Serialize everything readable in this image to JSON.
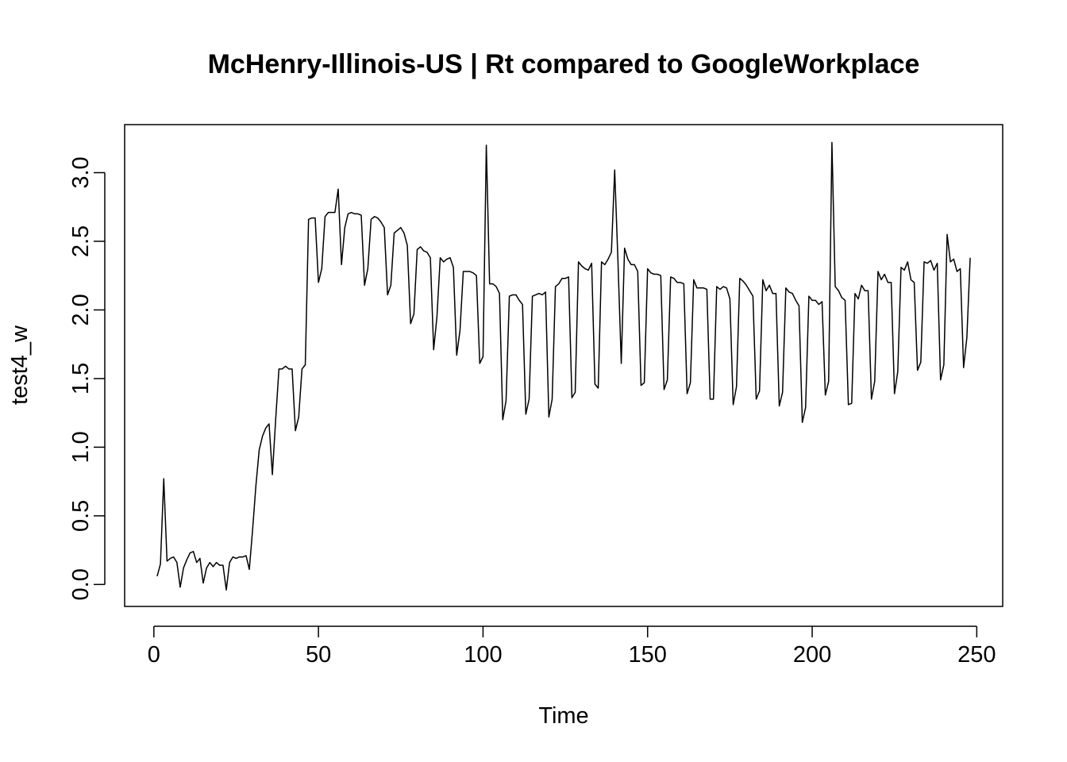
{
  "chart_data": {
    "type": "line",
    "title": "McHenry-Illinois-US | Rt compared to GoogleWorkplace",
    "xlabel": "Time",
    "ylabel": "test4_w",
    "xlim": [
      1,
      248
    ],
    "ylim": [
      -0.03,
      3.22
    ],
    "grid": false,
    "x_ticks": [
      0,
      50,
      100,
      150,
      200,
      250
    ],
    "x_tick_labels": [
      "0",
      "50",
      "100",
      "150",
      "200",
      "250"
    ],
    "y_ticks": [
      0.0,
      0.5,
      1.0,
      1.5,
      2.0,
      2.5,
      3.0
    ],
    "y_tick_labels": [
      "0.0",
      "0.5",
      "1.0",
      "1.5",
      "2.0",
      "2.5",
      "3.0"
    ],
    "line_color": "#000000",
    "series": [
      {
        "x": [
          1,
          2,
          3,
          4,
          5,
          6,
          7,
          8,
          9,
          10,
          11,
          12,
          13,
          14,
          15,
          16,
          17,
          18,
          19,
          20,
          21,
          22,
          23,
          24,
          25,
          26,
          27,
          28,
          29,
          30,
          31,
          32,
          33,
          34,
          35,
          36,
          37,
          38,
          39,
          40,
          41,
          42,
          43,
          44,
          45,
          46,
          47,
          48,
          49,
          50,
          51,
          52,
          53,
          54,
          55,
          56,
          57,
          58,
          59,
          60,
          61,
          62,
          63,
          64,
          65,
          66,
          67,
          68,
          69,
          70,
          71,
          72,
          73,
          74,
          75,
          76,
          77,
          78,
          79,
          80,
          81,
          82,
          83,
          84,
          85,
          86,
          87,
          88,
          89,
          90,
          91,
          92,
          93,
          94,
          95,
          96,
          97,
          98,
          99,
          100,
          101,
          102,
          103,
          104,
          105,
          106,
          107,
          108,
          109,
          110,
          111,
          112,
          113,
          114,
          115,
          116,
          117,
          118,
          119,
          120,
          121,
          122,
          123,
          124,
          125,
          126,
          127,
          128,
          129,
          130,
          131,
          132,
          133,
          134,
          135,
          136,
          137,
          138,
          139,
          140,
          141,
          142,
          143,
          144,
          145,
          146,
          147,
          148,
          149,
          150,
          151,
          152,
          153,
          154,
          155,
          156,
          157,
          158,
          159,
          160,
          161,
          162,
          163,
          164,
          165,
          166,
          167,
          168,
          169,
          170,
          171,
          172,
          173,
          174,
          175,
          176,
          177,
          178,
          179,
          180,
          181,
          182,
          183,
          184,
          185,
          186,
          187,
          188,
          189,
          190,
          191,
          192,
          193,
          194,
          195,
          196,
          197,
          198,
          199,
          200,
          201,
          202,
          203,
          204,
          205,
          206,
          207,
          208,
          209,
          210,
          211,
          212,
          213,
          214,
          215,
          216,
          217,
          218,
          219,
          220,
          221,
          222,
          223,
          224,
          225,
          226,
          227,
          228,
          229,
          230,
          231,
          232,
          233,
          234,
          235,
          236,
          237,
          238,
          239,
          240,
          241,
          242,
          243,
          244,
          245,
          246,
          247,
          248
        ],
        "values": [
          0.06,
          0.15,
          0.77,
          0.17,
          0.19,
          0.2,
          0.16,
          -0.02,
          0.12,
          0.18,
          0.23,
          0.24,
          0.16,
          0.19,
          0.01,
          0.12,
          0.16,
          0.13,
          0.16,
          0.14,
          0.14,
          -0.04,
          0.16,
          0.2,
          0.19,
          0.2,
          0.2,
          0.21,
          0.11,
          0.4,
          0.72,
          0.98,
          1.08,
          1.14,
          1.17,
          0.8,
          1.2,
          1.57,
          1.57,
          1.59,
          1.57,
          1.57,
          1.12,
          1.22,
          1.57,
          1.6,
          2.66,
          2.67,
          2.67,
          2.2,
          2.3,
          2.68,
          2.71,
          2.71,
          2.71,
          2.88,
          2.33,
          2.6,
          2.7,
          2.71,
          2.7,
          2.7,
          2.69,
          2.18,
          2.3,
          2.66,
          2.68,
          2.67,
          2.64,
          2.6,
          2.11,
          2.18,
          2.56,
          2.58,
          2.6,
          2.56,
          2.47,
          1.9,
          1.97,
          2.44,
          2.46,
          2.43,
          2.42,
          2.38,
          1.71,
          1.95,
          2.38,
          2.35,
          2.37,
          2.38,
          2.31,
          1.67,
          1.85,
          2.28,
          2.28,
          2.28,
          2.27,
          2.25,
          1.61,
          1.66,
          3.2,
          2.19,
          2.19,
          2.17,
          2.12,
          1.2,
          1.34,
          2.1,
          2.11,
          2.11,
          2.07,
          2.04,
          1.24,
          1.35,
          2.1,
          2.11,
          2.12,
          2.11,
          2.13,
          1.22,
          1.35,
          2.17,
          2.19,
          2.23,
          2.23,
          2.24,
          1.36,
          1.4,
          2.35,
          2.32,
          2.3,
          2.29,
          2.34,
          1.46,
          1.43,
          2.35,
          2.33,
          2.37,
          2.42,
          3.02,
          2.35,
          1.61,
          2.45,
          2.37,
          2.33,
          2.33,
          2.28,
          1.45,
          1.47,
          2.3,
          2.27,
          2.26,
          2.26,
          2.25,
          1.42,
          1.49,
          2.24,
          2.23,
          2.2,
          2.2,
          2.19,
          1.39,
          1.47,
          2.22,
          2.16,
          2.16,
          2.16,
          2.15,
          1.35,
          1.35,
          2.17,
          2.15,
          2.17,
          2.16,
          2.08,
          1.31,
          1.44,
          2.23,
          2.21,
          2.18,
          2.14,
          2.1,
          1.35,
          1.41,
          2.22,
          2.14,
          2.18,
          2.12,
          2.12,
          1.3,
          1.4,
          2.16,
          2.13,
          2.12,
          2.07,
          2.03,
          1.18,
          1.29,
          2.1,
          2.07,
          2.07,
          2.04,
          2.06,
          1.38,
          1.48,
          3.22,
          2.17,
          2.14,
          2.09,
          2.07,
          1.31,
          1.32,
          2.12,
          2.08,
          2.18,
          2.14,
          2.14,
          1.35,
          1.48,
          2.28,
          2.22,
          2.26,
          2.2,
          2.2,
          1.39,
          1.55,
          2.31,
          2.29,
          2.35,
          2.22,
          2.2,
          1.56,
          1.62,
          2.35,
          2.34,
          2.36,
          2.29,
          2.34,
          1.49,
          1.6,
          2.55,
          2.35,
          2.37,
          2.28,
          2.3,
          1.58,
          1.8,
          2.38
        ]
      }
    ]
  }
}
